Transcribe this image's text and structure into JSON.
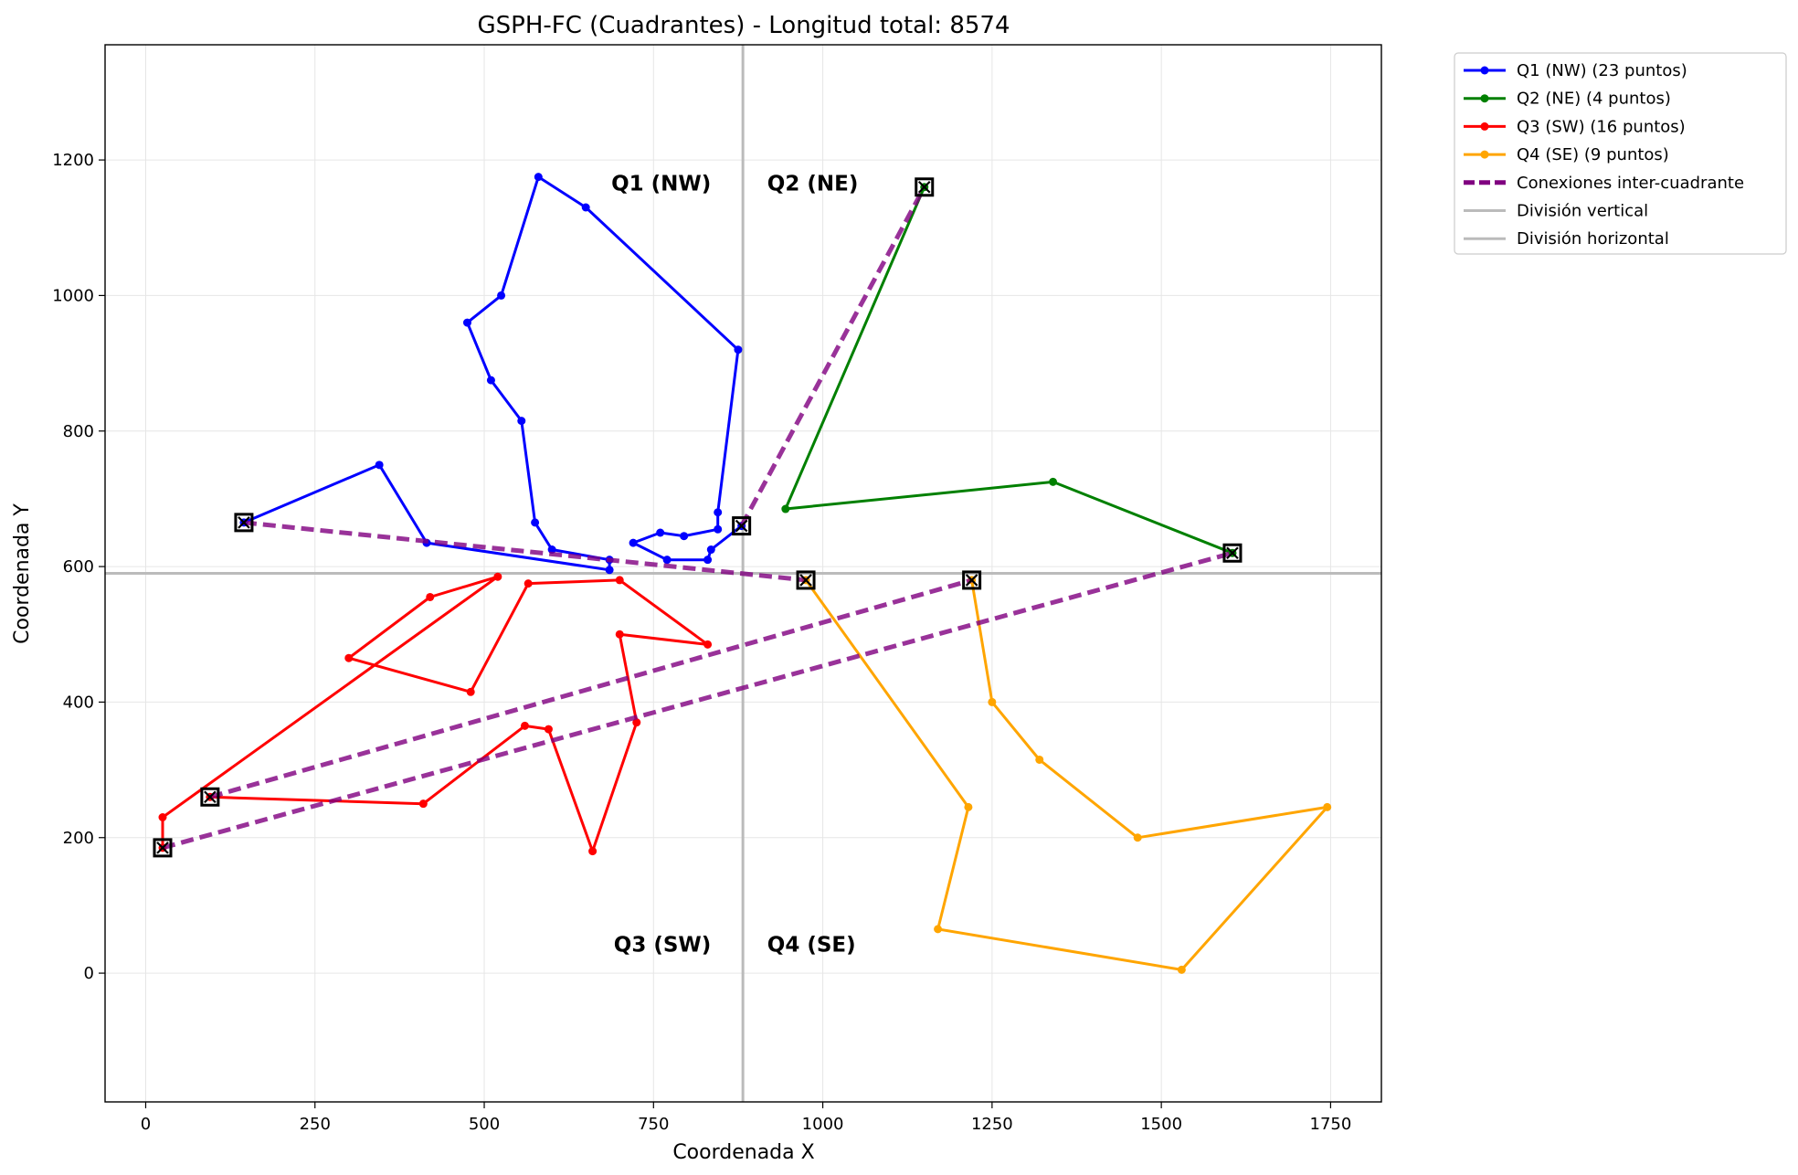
{
  "chart_data": {
    "type": "line",
    "title": "GSPH-FC (Cuadrantes) - Longitud total: 8574",
    "xlabel": "Coordenada X",
    "ylabel": "Coordenada Y",
    "xlim": [
      -60,
      1825
    ],
    "ylim": [
      -190,
      1370
    ],
    "xticks": [
      0,
      250,
      500,
      750,
      1000,
      1250,
      1500,
      1750
    ],
    "yticks": [
      0,
      200,
      400,
      600,
      800,
      1000,
      1200
    ],
    "grid": true,
    "legend_position": "outside-top-right",
    "divisions": {
      "x": 882,
      "y": 590
    },
    "quadrant_labels": [
      {
        "text": "Q1 (NW)",
        "x": 835,
        "y": 1155,
        "anchor": "end"
      },
      {
        "text": "Q2 (NE)",
        "x": 918,
        "y": 1155,
        "anchor": "start"
      },
      {
        "text": "Q3 (SW)",
        "x": 835,
        "y": 32,
        "anchor": "end"
      },
      {
        "text": "Q4 (SE)",
        "x": 918,
        "y": 32,
        "anchor": "start"
      }
    ],
    "series": [
      {
        "name": "Q1 (NW) (23 puntos)",
        "color": "#0000ff",
        "points": [
          [
            145,
            665
          ],
          [
            345,
            750
          ],
          [
            415,
            635
          ],
          [
            685,
            595
          ],
          [
            685,
            610
          ],
          [
            600,
            625
          ],
          [
            575,
            665
          ],
          [
            555,
            815
          ],
          [
            510,
            875
          ],
          [
            475,
            960
          ],
          [
            525,
            1000
          ],
          [
            580,
            1175
          ],
          [
            650,
            1130
          ],
          [
            875,
            920
          ],
          [
            845,
            680
          ],
          [
            845,
            655
          ],
          [
            795,
            645
          ],
          [
            760,
            650
          ],
          [
            720,
            635
          ],
          [
            770,
            610
          ],
          [
            830,
            610
          ],
          [
            835,
            625
          ],
          [
            880,
            660
          ]
        ]
      },
      {
        "name": "Q2 (NE) (4 puntos)",
        "color": "#008000",
        "points": [
          [
            1150,
            1160
          ],
          [
            945,
            685
          ],
          [
            1340,
            725
          ],
          [
            1605,
            620
          ]
        ]
      },
      {
        "name": "Q3 (SW) (16 puntos)",
        "color": "#ff0000",
        "points": [
          [
            95,
            260
          ],
          [
            410,
            250
          ],
          [
            560,
            365
          ],
          [
            595,
            360
          ],
          [
            660,
            180
          ],
          [
            725,
            370
          ],
          [
            700,
            500
          ],
          [
            830,
            485
          ],
          [
            700,
            580
          ],
          [
            565,
            575
          ],
          [
            480,
            415
          ],
          [
            300,
            465
          ],
          [
            420,
            555
          ],
          [
            520,
            585
          ],
          [
            25,
            230
          ],
          [
            25,
            185
          ]
        ]
      },
      {
        "name": "Q4 (SE) (9 puntos)",
        "color": "#ffa500",
        "points": [
          [
            1220,
            580
          ],
          [
            1250,
            400
          ],
          [
            1320,
            315
          ],
          [
            1465,
            200
          ],
          [
            1745,
            245
          ],
          [
            1530,
            5
          ],
          [
            1170,
            65
          ],
          [
            1215,
            245
          ],
          [
            975,
            580
          ]
        ]
      },
      {
        "name": "Conexiones inter-cuadrante",
        "color": "#800080",
        "dashed": true,
        "connections": [
          [
            [
              145,
              665
            ],
            [
              975,
              580
            ]
          ],
          [
            [
              880,
              660
            ],
            [
              1150,
              1160
            ]
          ],
          [
            [
              95,
              260
            ],
            [
              1220,
              580
            ]
          ],
          [
            [
              25,
              185
            ],
            [
              1605,
              620
            ]
          ]
        ]
      }
    ],
    "markers": [
      [
        145,
        665
      ],
      [
        880,
        660
      ],
      [
        1150,
        1160
      ],
      [
        1605,
        620
      ],
      [
        975,
        580
      ],
      [
        1220,
        580
      ],
      [
        95,
        260
      ],
      [
        25,
        185
      ]
    ],
    "reference_lines": [
      {
        "name": "División vertical",
        "color": "#bbbbbb"
      },
      {
        "name": "División horizontal",
        "color": "#bbbbbb"
      }
    ]
  }
}
